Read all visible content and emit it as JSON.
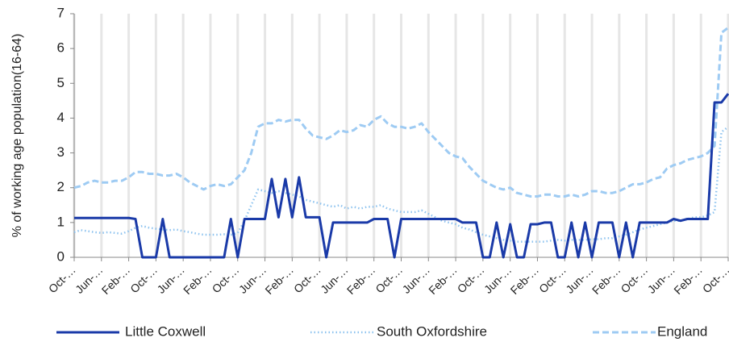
{
  "chart_data": {
    "type": "line",
    "y_label": "% of working age population(16-64)",
    "categories": [
      "Oct-…",
      null,
      null,
      null,
      "Jun-…",
      null,
      null,
      null,
      "Feb-…",
      null,
      null,
      null,
      "Oct-…",
      null,
      null,
      null,
      "Jun-…",
      null,
      null,
      null,
      "Feb-…",
      null,
      null,
      null,
      "Oct-…",
      null,
      null,
      null,
      "Jun-…",
      null,
      null,
      null,
      "Feb-…",
      null,
      null,
      null,
      "Oct-…",
      null,
      null,
      null,
      "Jun-…",
      null,
      null,
      null,
      "Feb-…",
      null,
      null,
      null,
      "Oct-…",
      null,
      null,
      null,
      "Jun-…",
      null,
      null,
      null,
      "Feb-…",
      null,
      null,
      null,
      "Oct-…",
      null,
      null,
      null,
      "Jun-…",
      null,
      null,
      null,
      "Feb-…",
      null,
      null,
      null,
      "Oct-…",
      null,
      null,
      null,
      "Jun-…",
      null,
      null,
      null,
      "Feb-…",
      null,
      null,
      null,
      "Oct-…",
      null,
      null,
      null,
      "Jun-…",
      null,
      null,
      null,
      "Feb-…",
      null,
      null,
      null,
      "Oct-…"
    ],
    "series": [
      {
        "name": "Little Coxwell",
        "color": "#1a3aa8",
        "style": "solid",
        "values": [
          1.13,
          1.13,
          1.13,
          1.13,
          1.13,
          1.13,
          1.13,
          1.13,
          1.13,
          1.1,
          0,
          0,
          0,
          1.1,
          0,
          0,
          0,
          0,
          0,
          0,
          0,
          0,
          0,
          1.1,
          0,
          1.1,
          1.1,
          1.1,
          1.1,
          2.25,
          1.15,
          2.25,
          1.15,
          2.3,
          1.15,
          1.15,
          1.15,
          0,
          1.0,
          1.0,
          1.0,
          1.0,
          1.0,
          1.0,
          1.1,
          1.1,
          1.1,
          0,
          1.1,
          1.1,
          1.1,
          1.1,
          1.1,
          1.1,
          1.1,
          1.1,
          1.1,
          1.0,
          1.0,
          1.0,
          0,
          0,
          1.0,
          0,
          0.95,
          0,
          0,
          0.95,
          0.95,
          1.0,
          1.0,
          0,
          0,
          1.0,
          0,
          1.0,
          0,
          1.0,
          1.0,
          1.0,
          0,
          1.0,
          0,
          1.0,
          1.0,
          1.0,
          1.0,
          1.0,
          1.1,
          1.05,
          1.1,
          1.1,
          1.1,
          1.1,
          4.45,
          4.45,
          4.7
        ]
      },
      {
        "name": "South Oxfordshire",
        "color": "#8ec3ef",
        "style": "dotted",
        "values": [
          0.72,
          0.78,
          0.75,
          0.72,
          0.7,
          0.72,
          0.7,
          0.68,
          0.75,
          0.85,
          0.9,
          0.85,
          0.82,
          0.8,
          0.78,
          0.8,
          0.75,
          0.72,
          0.68,
          0.65,
          0.65,
          0.65,
          0.66,
          0.65,
          0.7,
          1.05,
          1.5,
          1.95,
          1.9,
          1.85,
          1.9,
          1.85,
          1.8,
          1.75,
          1.65,
          1.6,
          1.55,
          1.5,
          1.45,
          1.5,
          1.4,
          1.45,
          1.4,
          1.45,
          1.45,
          1.5,
          1.4,
          1.35,
          1.3,
          1.3,
          1.3,
          1.35,
          1.25,
          1.15,
          1.05,
          1.0,
          0.95,
          0.85,
          0.8,
          0.72,
          0.65,
          0.6,
          0.55,
          0.5,
          0.48,
          0.45,
          0.45,
          0.45,
          0.45,
          0.45,
          0.48,
          0.5,
          0.48,
          0.5,
          0.5,
          0.5,
          0.52,
          0.52,
          0.55,
          0.55,
          0.6,
          0.65,
          0.72,
          0.8,
          0.85,
          0.9,
          0.95,
          1.0,
          1.05,
          1.05,
          1.1,
          1.15,
          1.15,
          1.2,
          1.3,
          3.6,
          3.75
        ]
      },
      {
        "name": "England",
        "color": "#9ecbf3",
        "style": "dashed",
        "values": [
          2.0,
          2.05,
          2.15,
          2.2,
          2.15,
          2.15,
          2.2,
          2.2,
          2.3,
          2.45,
          2.45,
          2.4,
          2.4,
          2.35,
          2.35,
          2.4,
          2.3,
          2.15,
          2.05,
          1.95,
          2.05,
          2.1,
          2.05,
          2.1,
          2.3,
          2.5,
          3.0,
          3.75,
          3.85,
          3.85,
          3.95,
          3.9,
          3.95,
          3.95,
          3.7,
          3.5,
          3.45,
          3.4,
          3.5,
          3.65,
          3.6,
          3.65,
          3.8,
          3.75,
          3.95,
          4.05,
          3.85,
          3.75,
          3.75,
          3.7,
          3.75,
          3.85,
          3.6,
          3.4,
          3.2,
          3.0,
          2.9,
          2.85,
          2.6,
          2.4,
          2.2,
          2.1,
          2.0,
          1.95,
          2.0,
          1.85,
          1.8,
          1.75,
          1.75,
          1.8,
          1.8,
          1.75,
          1.75,
          1.8,
          1.75,
          1.8,
          1.9,
          1.9,
          1.85,
          1.85,
          1.9,
          2.0,
          2.1,
          2.1,
          2.15,
          2.25,
          2.3,
          2.55,
          2.65,
          2.7,
          2.8,
          2.85,
          2.9,
          3.0,
          3.2,
          6.45,
          6.6
        ]
      }
    ],
    "ylim": [
      0,
      7
    ],
    "yticks": [
      0,
      1,
      2,
      3,
      4,
      5,
      6,
      7
    ],
    "grid": true,
    "legend": "bottom"
  }
}
